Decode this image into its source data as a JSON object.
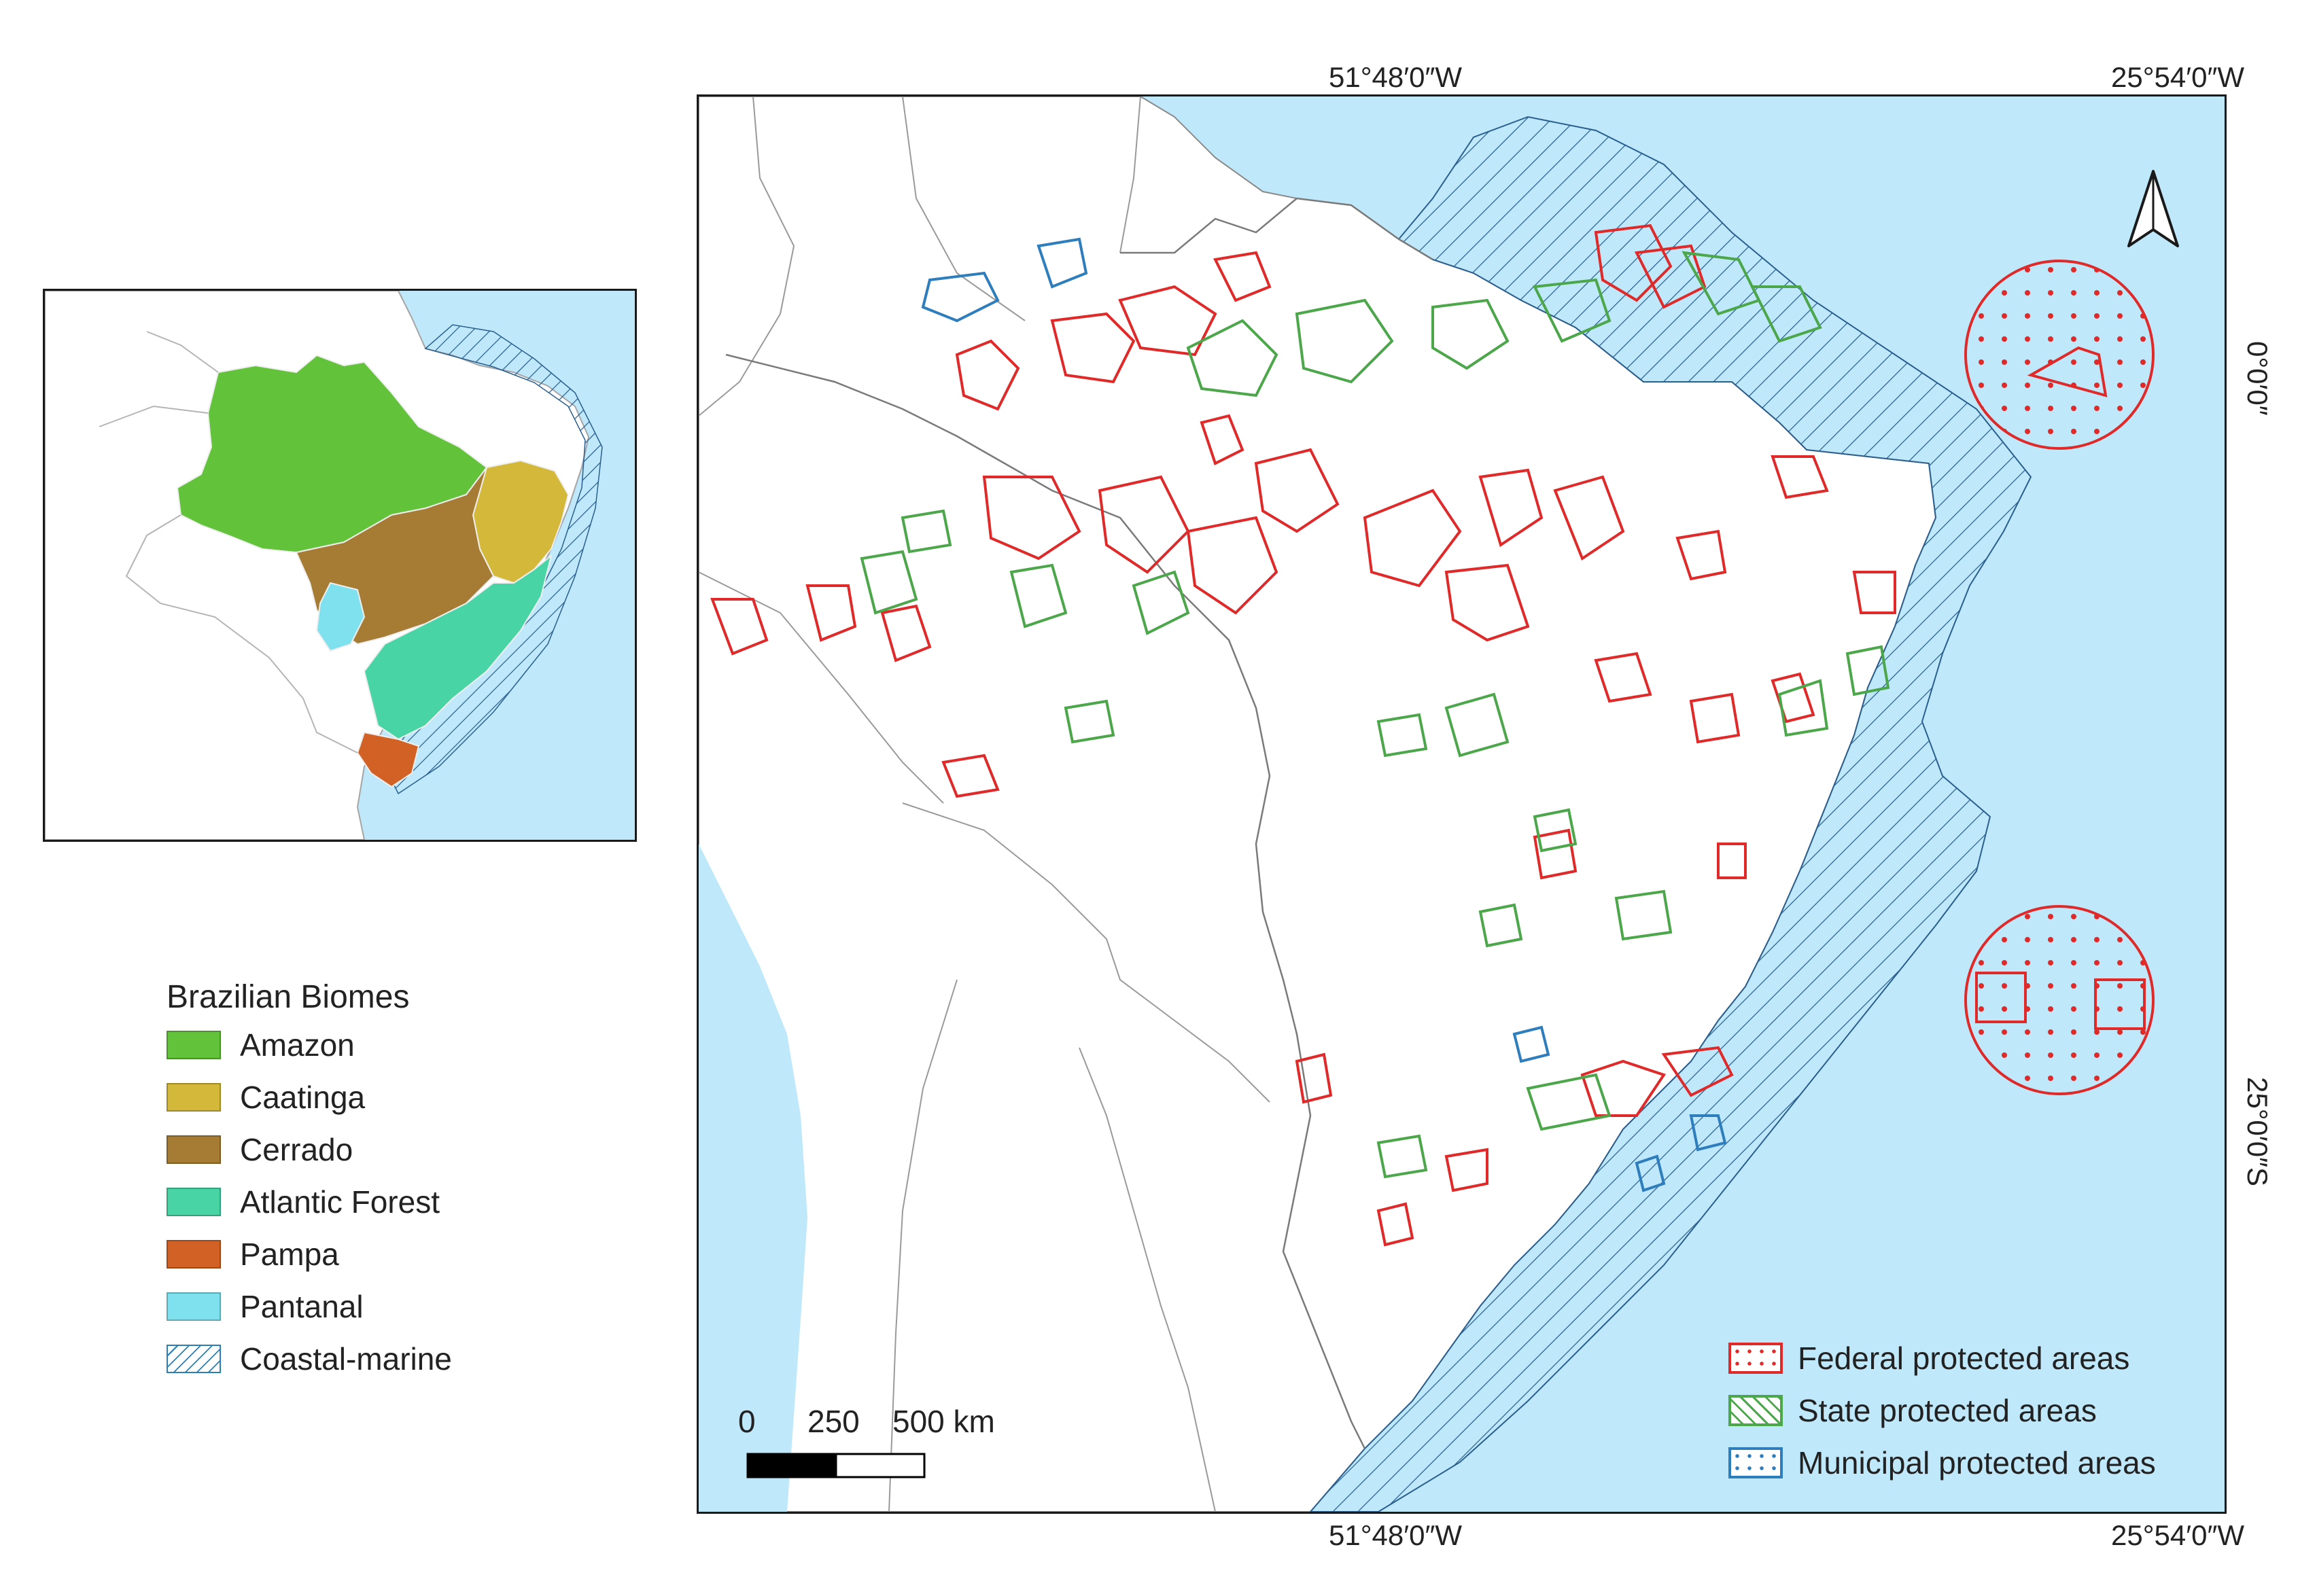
{
  "coordinates": {
    "top_left_lon": "51°48′0″W",
    "top_right_lon": "25°54′0″W",
    "bottom_left_lon": "51°48′0″W",
    "bottom_right_lon": "25°54′0″W",
    "right_top_lat": "0°0′0″",
    "right_bottom_lat": "25°0′0″S"
  },
  "biome_legend": {
    "title": "Brazilian Biomes",
    "items": [
      {
        "label": "Amazon",
        "color": "#62c33a"
      },
      {
        "label": "Caatinga",
        "color": "#d4b83a"
      },
      {
        "label": "Cerrado",
        "color": "#a67c34"
      },
      {
        "label": "Atlantic Forest",
        "color": "#48d4a4"
      },
      {
        "label": "Pampa",
        "color": "#d16124"
      },
      {
        "label": "Pantanal",
        "color": "#80e1ee"
      },
      {
        "label": "Coastal-marine",
        "color": "#2a7fb5"
      }
    ]
  },
  "protected_area_legend": {
    "items": [
      {
        "label": "Federal protected areas",
        "color": "#e02a2a"
      },
      {
        "label": "State protected areas",
        "color": "#4ca64a"
      },
      {
        "label": "Municipal protected areas",
        "color": "#2e7dbd"
      }
    ]
  },
  "scale_bar": {
    "ticks": [
      "0",
      "250",
      "500 km"
    ]
  },
  "colors": {
    "ocean": "#bfe9fb",
    "land": "#ffffff",
    "border": "#9a9a9a"
  },
  "icons": {
    "north_arrow": "north-arrow-icon"
  }
}
